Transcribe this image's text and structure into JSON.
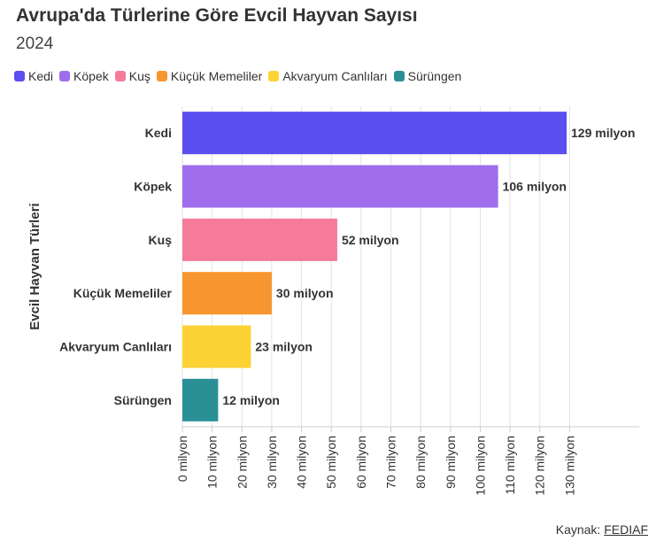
{
  "header": {
    "title": "Avrupa'da Türlerine Göre Evcil Hayvan Sayısı",
    "subtitle": "2024"
  },
  "legend": [
    {
      "label": "Kedi",
      "color": "#5b4ff0"
    },
    {
      "label": "Köpek",
      "color": "#a06ded"
    },
    {
      "label": "Kuş",
      "color": "#f57b98"
    },
    {
      "label": "Küçük Memeliler",
      "color": "#f7962e"
    },
    {
      "label": "Akvaryum Canlıları",
      "color": "#fdd234"
    },
    {
      "label": "Sürüngen",
      "color": "#2a9096"
    }
  ],
  "chart_data": {
    "type": "bar",
    "orientation": "horizontal",
    "categories": [
      "Kedi",
      "Köpek",
      "Kuş",
      "Küçük Memeliler",
      "Akvaryum Canlıları",
      "Sürüngen"
    ],
    "values": [
      129,
      106,
      52,
      30,
      23,
      12
    ],
    "value_labels": [
      "129 milyon",
      "106 milyon",
      "52 milyon",
      "30 milyon",
      "23 milyon",
      "12 milyon"
    ],
    "colors": [
      "#5b4ff0",
      "#a06ded",
      "#f57b98",
      "#f7962e",
      "#fdd234",
      "#2a9096"
    ],
    "xlim": [
      0,
      150
    ],
    "xticks": [
      0,
      10,
      20,
      30,
      40,
      50,
      60,
      70,
      80,
      90,
      100,
      110,
      120,
      130
    ],
    "xtick_labels": [
      "0 milyon",
      "10 milyon",
      "20 milyon",
      "30 milyon",
      "40 milyon",
      "50 milyon",
      "60 milyon",
      "70 milyon",
      "80 milyon",
      "90 milyon",
      "100 milyon",
      "110 milyon",
      "120 milyon",
      "130 milyon"
    ],
    "ylabel": "Evcil Hayvan Türleri",
    "xlabel": "",
    "grid": true,
    "legend_position": "top-left"
  },
  "source": {
    "prefix": "Kaynak: ",
    "link_text": "FEDIAF"
  }
}
